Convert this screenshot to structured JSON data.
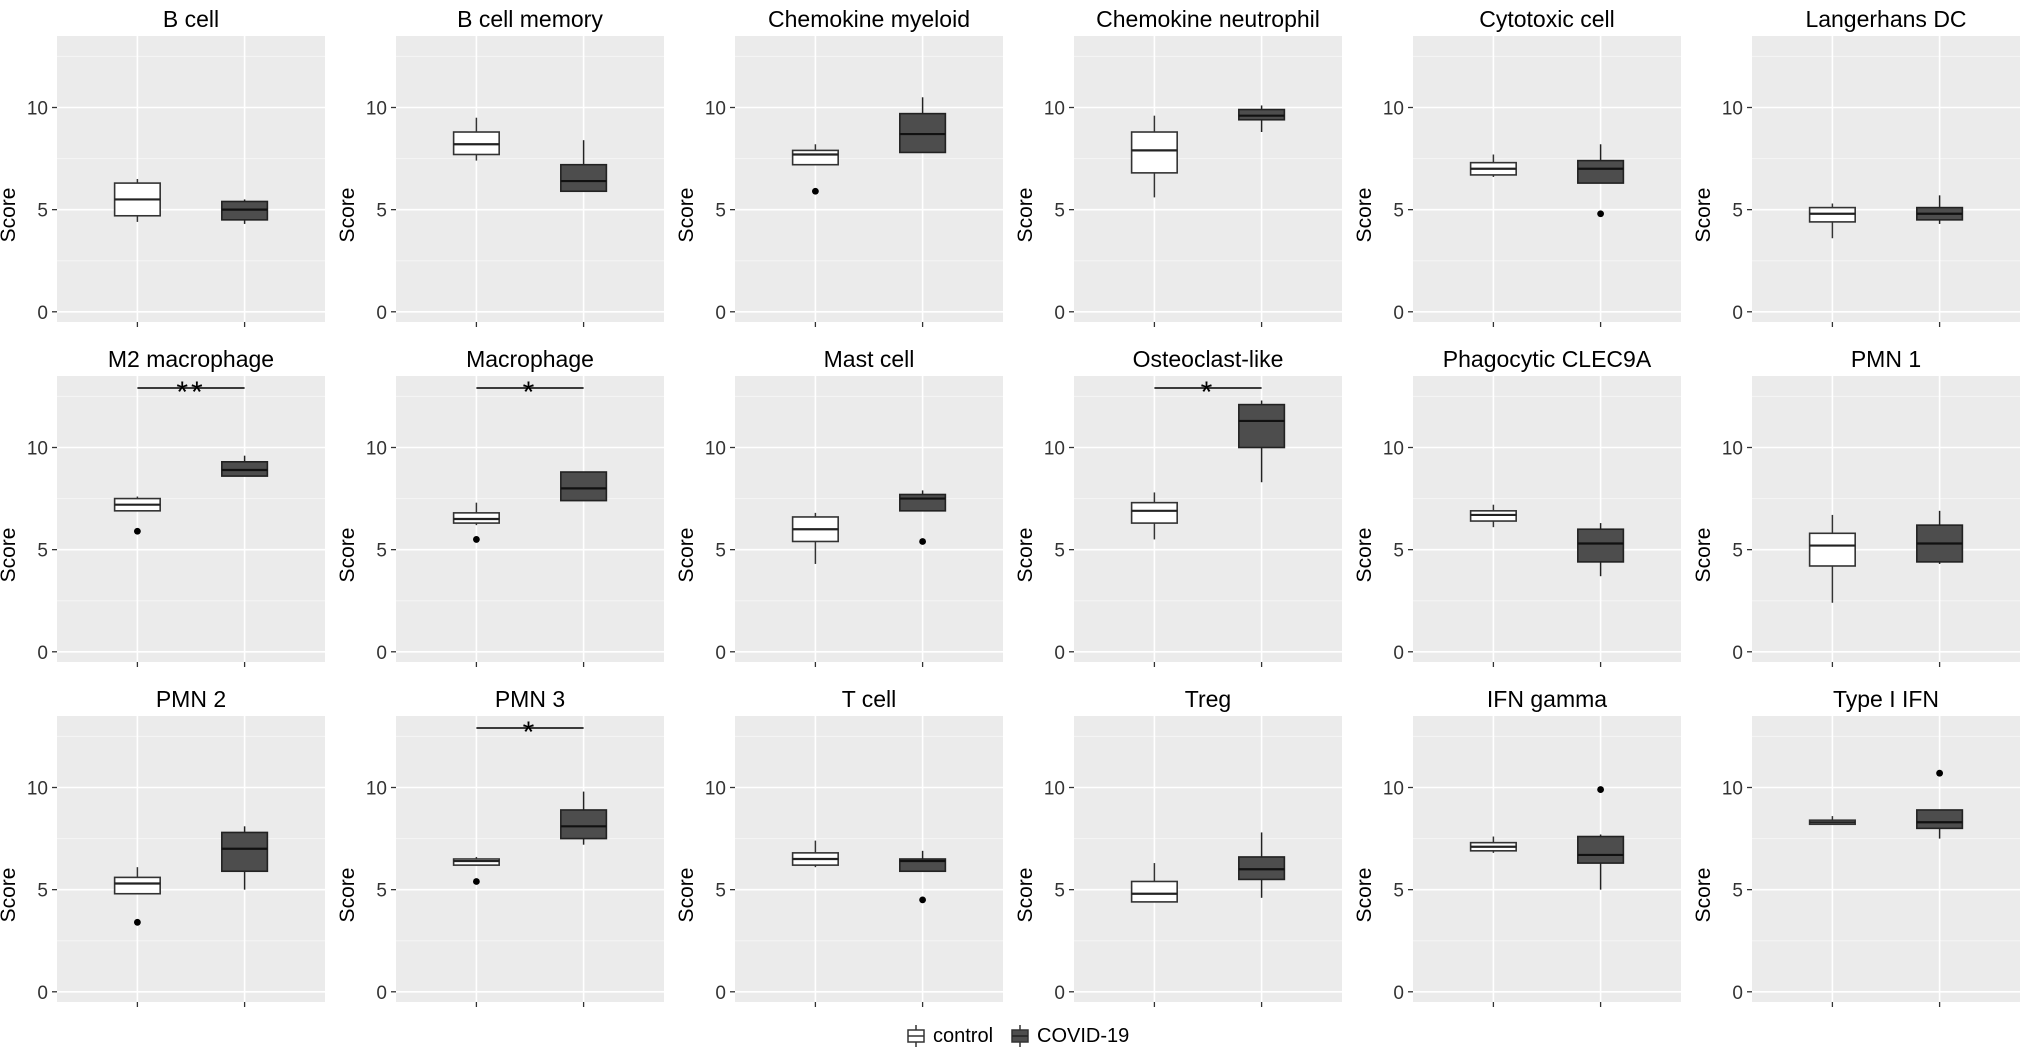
{
  "chart_data": {
    "type": "boxplot",
    "ylabel": "Score",
    "ylim": [
      -0.5,
      13.5
    ],
    "yticks": [
      0,
      5,
      10
    ],
    "groups": [
      "control",
      "COVID-19"
    ],
    "colors": {
      "control": "#ffffff",
      "COVID-19": "#4d4d4d",
      "panel_bg": "#ebebeb",
      "grid": "#ffffff"
    },
    "legend": {
      "position": "bottom",
      "items": [
        "control",
        "COVID-19"
      ]
    },
    "panels": [
      {
        "title": "B cell",
        "boxes": [
          {
            "min": 4.4,
            "q1": 4.7,
            "median": 5.5,
            "q3": 6.3,
            "max": 6.5,
            "outliers": []
          },
          {
            "min": 4.3,
            "q1": 4.5,
            "median": 5.0,
            "q3": 5.4,
            "max": 5.5,
            "outliers": []
          }
        ],
        "sig": ""
      },
      {
        "title": "B cell memory",
        "boxes": [
          {
            "min": 7.4,
            "q1": 7.7,
            "median": 8.2,
            "q3": 8.8,
            "max": 9.5,
            "outliers": []
          },
          {
            "min": 5.9,
            "q1": 5.9,
            "median": 6.4,
            "q3": 7.2,
            "max": 8.4,
            "outliers": []
          }
        ],
        "sig": ""
      },
      {
        "title": "Chemokine myeloid",
        "boxes": [
          {
            "min": 7.2,
            "q1": 7.2,
            "median": 7.7,
            "q3": 7.9,
            "max": 8.2,
            "outliers": [
              5.9
            ]
          },
          {
            "min": 7.8,
            "q1": 7.8,
            "median": 8.7,
            "q3": 9.7,
            "max": 10.5,
            "outliers": []
          }
        ],
        "sig": ""
      },
      {
        "title": "Chemokine neutrophil",
        "boxes": [
          {
            "min": 5.6,
            "q1": 6.8,
            "median": 7.9,
            "q3": 8.8,
            "max": 9.6,
            "outliers": []
          },
          {
            "min": 8.8,
            "q1": 9.4,
            "median": 9.6,
            "q3": 9.9,
            "max": 10.1,
            "outliers": []
          }
        ],
        "sig": ""
      },
      {
        "title": "Cytotoxic cell",
        "boxes": [
          {
            "min": 6.6,
            "q1": 6.7,
            "median": 7.0,
            "q3": 7.3,
            "max": 7.7,
            "outliers": []
          },
          {
            "min": 6.3,
            "q1": 6.3,
            "median": 7.0,
            "q3": 7.4,
            "max": 8.2,
            "outliers": [
              4.8
            ]
          }
        ],
        "sig": ""
      },
      {
        "title": "Langerhans DC",
        "boxes": [
          {
            "min": 3.6,
            "q1": 4.4,
            "median": 4.8,
            "q3": 5.1,
            "max": 5.3,
            "outliers": []
          },
          {
            "min": 4.3,
            "q1": 4.5,
            "median": 4.8,
            "q3": 5.1,
            "max": 5.7,
            "outliers": []
          }
        ],
        "sig": ""
      },
      {
        "title": "M2 macrophage",
        "boxes": [
          {
            "min": 6.9,
            "q1": 6.9,
            "median": 7.2,
            "q3": 7.5,
            "max": 7.6,
            "outliers": [
              5.9
            ]
          },
          {
            "min": 8.6,
            "q1": 8.6,
            "median": 8.9,
            "q3": 9.3,
            "max": 9.6,
            "outliers": []
          }
        ],
        "sig": "**"
      },
      {
        "title": "Macrophage",
        "boxes": [
          {
            "min": 6.2,
            "q1": 6.3,
            "median": 6.5,
            "q3": 6.8,
            "max": 7.3,
            "outliers": [
              5.5
            ]
          },
          {
            "min": 7.4,
            "q1": 7.4,
            "median": 8.0,
            "q3": 8.8,
            "max": 8.8,
            "outliers": []
          }
        ],
        "sig": "*"
      },
      {
        "title": "Mast cell",
        "boxes": [
          {
            "min": 4.3,
            "q1": 5.4,
            "median": 6.0,
            "q3": 6.6,
            "max": 6.8,
            "outliers": []
          },
          {
            "min": 6.9,
            "q1": 6.9,
            "median": 7.5,
            "q3": 7.7,
            "max": 7.9,
            "outliers": [
              5.4
            ]
          }
        ],
        "sig": ""
      },
      {
        "title": "Osteoclast-like",
        "boxes": [
          {
            "min": 5.5,
            "q1": 6.3,
            "median": 6.9,
            "q3": 7.3,
            "max": 7.8,
            "outliers": []
          },
          {
            "min": 8.3,
            "q1": 10.0,
            "median": 11.3,
            "q3": 12.1,
            "max": 12.3,
            "outliers": []
          }
        ],
        "sig": "*"
      },
      {
        "title": "Phagocytic CLEC9A",
        "boxes": [
          {
            "min": 6.1,
            "q1": 6.4,
            "median": 6.7,
            "q3": 6.9,
            "max": 7.2,
            "outliers": []
          },
          {
            "min": 3.7,
            "q1": 4.4,
            "median": 5.3,
            "q3": 6.0,
            "max": 6.3,
            "outliers": []
          }
        ],
        "sig": ""
      },
      {
        "title": "PMN 1",
        "boxes": [
          {
            "min": 2.4,
            "q1": 4.2,
            "median": 5.2,
            "q3": 5.8,
            "max": 6.7,
            "outliers": []
          },
          {
            "min": 4.3,
            "q1": 4.4,
            "median": 5.3,
            "q3": 6.2,
            "max": 6.9,
            "outliers": []
          }
        ],
        "sig": ""
      },
      {
        "title": "PMN 2",
        "boxes": [
          {
            "min": 4.8,
            "q1": 4.8,
            "median": 5.3,
            "q3": 5.6,
            "max": 6.1,
            "outliers": [
              3.4
            ]
          },
          {
            "min": 5.0,
            "q1": 5.9,
            "median": 7.0,
            "q3": 7.8,
            "max": 8.1,
            "outliers": []
          }
        ],
        "sig": ""
      },
      {
        "title": "PMN 3",
        "boxes": [
          {
            "min": 6.2,
            "q1": 6.2,
            "median": 6.4,
            "q3": 6.5,
            "max": 6.6,
            "outliers": [
              5.4
            ]
          },
          {
            "min": 7.2,
            "q1": 7.5,
            "median": 8.1,
            "q3": 8.9,
            "max": 9.8,
            "outliers": []
          }
        ],
        "sig": "*"
      },
      {
        "title": "T cell",
        "boxes": [
          {
            "min": 6.1,
            "q1": 6.2,
            "median": 6.5,
            "q3": 6.8,
            "max": 7.4,
            "outliers": []
          },
          {
            "min": 5.9,
            "q1": 5.9,
            "median": 6.4,
            "q3": 6.5,
            "max": 6.9,
            "outliers": [
              4.5
            ]
          }
        ],
        "sig": ""
      },
      {
        "title": "Treg",
        "boxes": [
          {
            "min": 4.4,
            "q1": 4.4,
            "median": 4.8,
            "q3": 5.4,
            "max": 6.3,
            "outliers": []
          },
          {
            "min": 4.6,
            "q1": 5.5,
            "median": 6.0,
            "q3": 6.6,
            "max": 7.8,
            "outliers": []
          }
        ],
        "sig": ""
      },
      {
        "title": "IFN gamma",
        "boxes": [
          {
            "min": 6.8,
            "q1": 6.9,
            "median": 7.1,
            "q3": 7.3,
            "max": 7.6,
            "outliers": []
          },
          {
            "min": 5.0,
            "q1": 6.3,
            "median": 6.7,
            "q3": 7.6,
            "max": 7.7,
            "outliers": [
              9.9
            ]
          }
        ],
        "sig": ""
      },
      {
        "title": "Type I IFN",
        "boxes": [
          {
            "min": 8.2,
            "q1": 8.2,
            "median": 8.3,
            "q3": 8.4,
            "max": 8.6,
            "outliers": []
          },
          {
            "min": 7.5,
            "q1": 8.0,
            "median": 8.3,
            "q3": 8.9,
            "max": 8.9,
            "outliers": [
              10.7
            ]
          }
        ],
        "sig": ""
      }
    ]
  }
}
